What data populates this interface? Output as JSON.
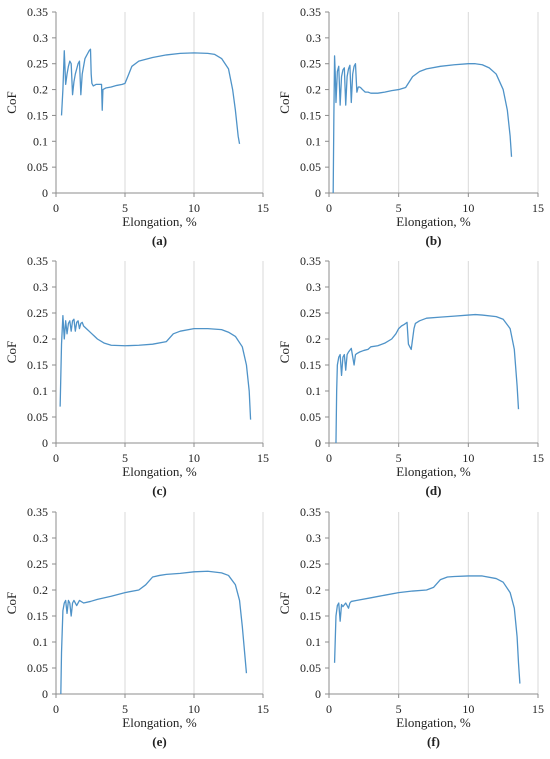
{
  "colors": {
    "series": "#4f93c8",
    "grid": "#d9d9d9",
    "axis": "#8c8c8c",
    "text": "#222222"
  },
  "chart_data": [
    {
      "type": "line",
      "panel": "(a)",
      "title": "",
      "xlabel": "Elongation, %",
      "ylabel": "CoF",
      "xlim": [
        0,
        15
      ],
      "ylim": [
        0,
        0.35
      ],
      "xticks": [
        "0",
        "5",
        "10",
        "15"
      ],
      "yticks": [
        "0",
        "0.05",
        "0.1",
        "0.15",
        "0.2",
        "0.25",
        "0.3",
        "0.35"
      ],
      "grid": "vertical",
      "x": [
        0.4,
        0.5,
        0.6,
        0.7,
        0.8,
        0.9,
        1.0,
        1.1,
        1.2,
        1.3,
        1.4,
        1.5,
        1.6,
        1.7,
        1.8,
        1.9,
        2.0,
        2.1,
        2.2,
        2.3,
        2.4,
        2.5,
        2.55,
        2.6,
        2.7,
        2.9,
        3.1,
        3.3,
        3.35,
        3.4,
        3.6,
        4.0,
        4.4,
        4.8,
        5.0,
        5.2,
        5.5,
        6.0,
        7.0,
        8.0,
        9.0,
        10.0,
        11.0,
        11.5,
        12.0,
        12.5,
        12.8,
        13.0,
        13.2,
        13.3
      ],
      "y": [
        0.15,
        0.2,
        0.275,
        0.21,
        0.23,
        0.245,
        0.255,
        0.25,
        0.19,
        0.215,
        0.23,
        0.24,
        0.25,
        0.255,
        0.19,
        0.23,
        0.245,
        0.26,
        0.265,
        0.27,
        0.275,
        0.278,
        0.23,
        0.212,
        0.207,
        0.21,
        0.21,
        0.21,
        0.16,
        0.2,
        0.203,
        0.205,
        0.208,
        0.21,
        0.212,
        0.225,
        0.245,
        0.255,
        0.262,
        0.267,
        0.27,
        0.271,
        0.27,
        0.268,
        0.26,
        0.24,
        0.2,
        0.16,
        0.11,
        0.095
      ]
    },
    {
      "type": "line",
      "panel": "(b)",
      "title": "",
      "xlabel": "Elongation, %",
      "ylabel": "CoF",
      "xlim": [
        0,
        15
      ],
      "ylim": [
        0,
        0.35
      ],
      "xticks": [
        "0",
        "5",
        "10",
        "15"
      ],
      "yticks": [
        "0",
        "0.05",
        "0.1",
        "0.15",
        "0.2",
        "0.25",
        "0.3",
        "0.35"
      ],
      "grid": "vertical",
      "x": [
        0.3,
        0.35,
        0.4,
        0.45,
        0.5,
        0.6,
        0.7,
        0.8,
        0.9,
        1.0,
        1.1,
        1.2,
        1.3,
        1.4,
        1.5,
        1.6,
        1.7,
        1.8,
        1.9,
        2.0,
        2.1,
        2.2,
        2.3,
        2.4,
        2.6,
        2.8,
        3.0,
        3.5,
        4.0,
        4.5,
        5.0,
        5.5,
        6.0,
        6.5,
        7.0,
        8.0,
        9.0,
        10.0,
        10.5,
        11.0,
        11.5,
        12.0,
        12.5,
        12.8,
        13.0,
        13.1
      ],
      "y": [
        0.0,
        0.15,
        0.265,
        0.23,
        0.175,
        0.235,
        0.245,
        0.17,
        0.225,
        0.238,
        0.242,
        0.17,
        0.225,
        0.24,
        0.247,
        0.175,
        0.23,
        0.245,
        0.25,
        0.195,
        0.205,
        0.205,
        0.203,
        0.2,
        0.195,
        0.195,
        0.193,
        0.193,
        0.195,
        0.198,
        0.2,
        0.204,
        0.225,
        0.235,
        0.24,
        0.245,
        0.248,
        0.25,
        0.25,
        0.248,
        0.242,
        0.23,
        0.2,
        0.16,
        0.11,
        0.07
      ]
    },
    {
      "type": "line",
      "panel": "(c)",
      "title": "",
      "xlabel": "Elongation, %",
      "ylabel": "CoF",
      "xlim": [
        0,
        15
      ],
      "ylim": [
        0,
        0.35
      ],
      "xticks": [
        "0",
        "5",
        "10",
        "15"
      ],
      "yticks": [
        "0",
        "0.05",
        "0.1",
        "0.15",
        "0.2",
        "0.25",
        "0.3",
        "0.35"
      ],
      "grid": "vertical",
      "x": [
        0.3,
        0.4,
        0.5,
        0.6,
        0.7,
        0.8,
        0.9,
        1.0,
        1.1,
        1.2,
        1.3,
        1.4,
        1.5,
        1.6,
        1.7,
        1.8,
        1.9,
        2.0,
        2.2,
        2.4,
        2.6,
        2.8,
        3.0,
        3.5,
        4.0,
        5.0,
        6.0,
        7.0,
        8.0,
        8.5,
        9.0,
        10.0,
        11.0,
        12.0,
        12.5,
        13.0,
        13.5,
        13.8,
        14.0,
        14.1
      ],
      "y": [
        0.07,
        0.19,
        0.245,
        0.2,
        0.235,
        0.21,
        0.23,
        0.235,
        0.215,
        0.235,
        0.238,
        0.215,
        0.232,
        0.235,
        0.22,
        0.23,
        0.232,
        0.225,
        0.22,
        0.215,
        0.21,
        0.205,
        0.2,
        0.192,
        0.188,
        0.187,
        0.188,
        0.19,
        0.195,
        0.21,
        0.215,
        0.22,
        0.22,
        0.218,
        0.213,
        0.205,
        0.185,
        0.15,
        0.1,
        0.045
      ]
    },
    {
      "type": "line",
      "panel": "(d)",
      "title": "",
      "xlabel": "Elongation, %",
      "ylabel": "CoF",
      "xlim": [
        0,
        15
      ],
      "ylim": [
        0,
        0.35
      ],
      "xticks": [
        "0",
        "5",
        "10",
        "15"
      ],
      "yticks": [
        "0",
        "0.05",
        "0.1",
        "0.15",
        "0.2",
        "0.25",
        "0.3",
        "0.35"
      ],
      "grid": "vertical",
      "x": [
        0.5,
        0.55,
        0.6,
        0.7,
        0.8,
        0.9,
        1.0,
        1.1,
        1.2,
        1.3,
        1.4,
        1.6,
        1.8,
        1.9,
        2.0,
        2.2,
        2.5,
        2.8,
        3.0,
        3.5,
        4.0,
        4.5,
        4.8,
        5.0,
        5.2,
        5.4,
        5.6,
        5.7,
        5.8,
        5.9,
        6.0,
        6.1,
        6.2,
        6.5,
        7.0,
        8.0,
        9.0,
        10.0,
        10.5,
        11.0,
        12.0,
        12.5,
        13.0,
        13.3,
        13.5,
        13.6
      ],
      "y": [
        0.0,
        0.1,
        0.15,
        0.165,
        0.17,
        0.13,
        0.165,
        0.17,
        0.14,
        0.17,
        0.175,
        0.182,
        0.15,
        0.17,
        0.172,
        0.175,
        0.178,
        0.18,
        0.185,
        0.187,
        0.192,
        0.2,
        0.21,
        0.22,
        0.225,
        0.228,
        0.232,
        0.19,
        0.185,
        0.18,
        0.2,
        0.22,
        0.23,
        0.235,
        0.24,
        0.242,
        0.244,
        0.246,
        0.247,
        0.246,
        0.243,
        0.238,
        0.22,
        0.18,
        0.11,
        0.065
      ]
    },
    {
      "type": "line",
      "panel": "(e)",
      "title": "",
      "xlabel": "Elongation, %",
      "ylabel": "CoF",
      "xlim": [
        0,
        15
      ],
      "ylim": [
        0,
        0.35
      ],
      "xticks": [
        "0",
        "5",
        "10",
        "15"
      ],
      "yticks": [
        "0",
        "0.05",
        "0.1",
        "0.15",
        "0.2",
        "0.25",
        "0.3",
        "0.35"
      ],
      "grid": "vertical",
      "x": [
        0.35,
        0.4,
        0.5,
        0.6,
        0.7,
        0.8,
        0.9,
        1.0,
        1.1,
        1.2,
        1.3,
        1.5,
        1.7,
        2.0,
        2.5,
        3.0,
        4.0,
        5.0,
        6.0,
        6.5,
        7.0,
        7.5,
        8.0,
        9.0,
        10.0,
        11.0,
        12.0,
        12.5,
        13.0,
        13.3,
        13.5,
        13.7,
        13.8
      ],
      "y": [
        0.0,
        0.08,
        0.16,
        0.175,
        0.18,
        0.155,
        0.18,
        0.175,
        0.15,
        0.175,
        0.18,
        0.17,
        0.18,
        0.175,
        0.178,
        0.182,
        0.188,
        0.195,
        0.2,
        0.21,
        0.225,
        0.228,
        0.23,
        0.232,
        0.235,
        0.236,
        0.233,
        0.228,
        0.21,
        0.18,
        0.13,
        0.07,
        0.04
      ]
    },
    {
      "type": "line",
      "panel": "(f)",
      "title": "",
      "xlabel": "Elongation, %",
      "ylabel": "CoF",
      "xlim": [
        0,
        15
      ],
      "ylim": [
        0,
        0.35
      ],
      "xticks": [
        "0",
        "5",
        "10",
        "15"
      ],
      "yticks": [
        "0",
        "0.05",
        "0.1",
        "0.15",
        "0.2",
        "0.25",
        "0.3",
        "0.35"
      ],
      "grid": "vertical",
      "x": [
        0.4,
        0.5,
        0.6,
        0.7,
        0.8,
        0.9,
        1.0,
        1.2,
        1.4,
        1.5,
        1.6,
        2.0,
        3.0,
        4.0,
        5.0,
        6.0,
        7.0,
        7.5,
        8.0,
        8.5,
        9.0,
        10.0,
        11.0,
        12.0,
        12.5,
        13.0,
        13.3,
        13.5,
        13.6,
        13.7
      ],
      "y": [
        0.06,
        0.15,
        0.17,
        0.175,
        0.14,
        0.172,
        0.168,
        0.175,
        0.165,
        0.175,
        0.178,
        0.18,
        0.185,
        0.19,
        0.195,
        0.198,
        0.2,
        0.205,
        0.22,
        0.225,
        0.226,
        0.227,
        0.227,
        0.222,
        0.215,
        0.195,
        0.165,
        0.11,
        0.06,
        0.02
      ]
    }
  ]
}
